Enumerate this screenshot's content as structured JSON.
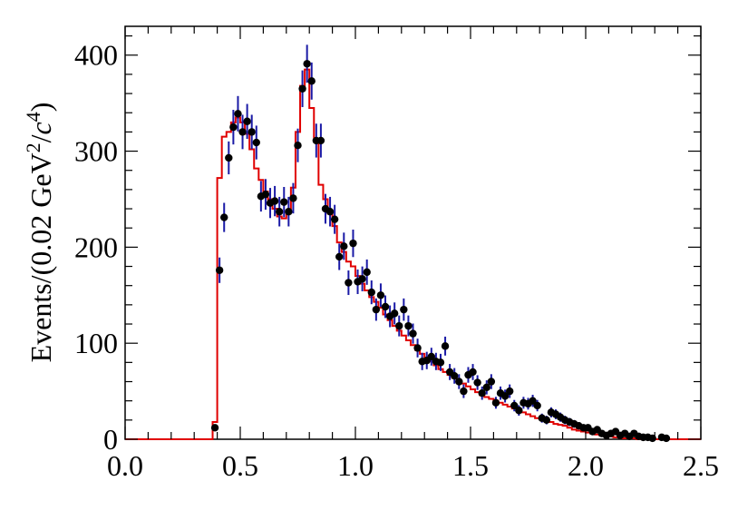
{
  "chart_data": {
    "type": "scatter",
    "title": "",
    "xlabel": "",
    "ylabel": "Events/(0.02 GeV",
    "ylabel_sup1": "2",
    "ylabel_mid": "/",
    "ylabel_c": "c",
    "ylabel_sup2": "4",
    "ylabel_end": ")",
    "xlim": [
      0.0,
      2.5
    ],
    "ylim": [
      0,
      430
    ],
    "x_ticks": [
      0.0,
      0.5,
      1.0,
      1.5,
      2.0,
      2.5
    ],
    "x_tick_labels": [
      "0.0",
      "0.5",
      "1.0",
      "1.5",
      "2.0",
      "2.5"
    ],
    "y_ticks": [
      0,
      100,
      200,
      300,
      400
    ],
    "y_tick_labels": [
      "0",
      "100",
      "200",
      "300",
      "400"
    ],
    "grid": false,
    "legend": "none",
    "colors": {
      "data": "#000000",
      "errorbar": "#1a1aa6",
      "fit": "#e00000",
      "axis": "#000000"
    },
    "series": [
      {
        "kind": "points",
        "x": [
          0.39,
          0.41,
          0.43,
          0.45,
          0.47,
          0.49,
          0.51,
          0.53,
          0.55,
          0.57,
          0.59,
          0.61,
          0.63,
          0.65,
          0.67,
          0.69,
          0.71,
          0.73,
          0.75,
          0.77,
          0.79,
          0.81,
          0.83,
          0.85,
          0.87,
          0.89,
          0.91,
          0.93,
          0.95,
          0.97,
          0.99,
          1.01,
          1.03,
          1.05,
          1.07,
          1.09,
          1.11,
          1.13,
          1.15,
          1.17,
          1.19,
          1.21,
          1.23,
          1.25,
          1.27,
          1.29,
          1.31,
          1.33,
          1.35,
          1.37,
          1.39,
          1.41,
          1.43,
          1.45,
          1.47,
          1.49,
          1.51,
          1.53,
          1.55,
          1.57,
          1.59,
          1.61,
          1.63,
          1.65,
          1.67,
          1.69,
          1.71,
          1.73,
          1.75,
          1.77,
          1.79,
          1.81,
          1.83,
          1.85,
          1.87,
          1.89,
          1.91,
          1.93,
          1.95,
          1.97,
          1.99,
          2.01,
          2.03,
          2.05,
          2.07,
          2.09,
          2.11,
          2.13,
          2.15,
          2.17,
          2.19,
          2.21,
          2.23,
          2.25,
          2.27,
          2.29,
          2.33,
          2.35
        ],
        "y": [
          12,
          176,
          231,
          293,
          325,
          339,
          320,
          331,
          320,
          309,
          253,
          255,
          246,
          248,
          237,
          247,
          237,
          251,
          306,
          365,
          391,
          373,
          311,
          311,
          240,
          237,
          229,
          190,
          201,
          163,
          204,
          164,
          167,
          174,
          153,
          135,
          150,
          138,
          128,
          131,
          118,
          135,
          118,
          110,
          95,
          81,
          82,
          86,
          81,
          80,
          97,
          70,
          66,
          60,
          50,
          67,
          70,
          59,
          48,
          54,
          60,
          38,
          48,
          45,
          50,
          35,
          30,
          38,
          37,
          40,
          35,
          22,
          20,
          28,
          26,
          23,
          20,
          18,
          16,
          14,
          12,
          12,
          8,
          10,
          6,
          4,
          6,
          8,
          4,
          6,
          3,
          6,
          3,
          2,
          2,
          1,
          2,
          1
        ]
      },
      {
        "kind": "fit_histogram",
        "bin_edges": [
          0.0,
          0.38,
          0.4,
          0.42,
          0.44,
          0.46,
          0.48,
          0.5,
          0.52,
          0.54,
          0.56,
          0.58,
          0.6,
          0.62,
          0.64,
          0.66,
          0.68,
          0.7,
          0.72,
          0.74,
          0.76,
          0.78,
          0.8,
          0.82,
          0.84,
          0.86,
          0.88,
          0.9,
          0.92,
          0.94,
          0.96,
          0.98,
          1.0,
          1.02,
          1.04,
          1.06,
          1.08,
          1.1,
          1.12,
          1.14,
          1.16,
          1.18,
          1.2,
          1.22,
          1.24,
          1.26,
          1.28,
          1.3,
          1.32,
          1.34,
          1.36,
          1.38,
          1.4,
          1.42,
          1.44,
          1.46,
          1.48,
          1.5,
          1.52,
          1.54,
          1.56,
          1.58,
          1.6,
          1.62,
          1.64,
          1.66,
          1.68,
          1.7,
          1.72,
          1.74,
          1.76,
          1.78,
          1.8,
          1.82,
          1.84,
          1.86,
          1.88,
          1.9,
          1.92,
          1.94,
          1.96,
          1.98,
          2.0,
          2.02,
          2.04,
          2.06,
          2.08,
          2.1,
          2.12,
          2.14,
          2.16,
          2.18,
          2.2,
          2.22,
          2.24,
          2.26,
          2.28,
          2.3,
          2.32,
          2.34,
          2.36,
          2.5
        ],
        "values": [
          0,
          18,
          272,
          315,
          320,
          330,
          335,
          330,
          318,
          302,
          282,
          270,
          258,
          250,
          240,
          232,
          230,
          238,
          262,
          320,
          368,
          385,
          345,
          310,
          265,
          250,
          235,
          222,
          205,
          195,
          185,
          180,
          170,
          162,
          155,
          148,
          143,
          137,
          130,
          124,
          118,
          113,
          108,
          103,
          98,
          93,
          89,
          85,
          81,
          77,
          73,
          70,
          67,
          64,
          61,
          58,
          55,
          52,
          49,
          46,
          44,
          42,
          40,
          38,
          36,
          34,
          32,
          30,
          28,
          26,
          24,
          22,
          21,
          20,
          18,
          16,
          15,
          14,
          12,
          10,
          9,
          8,
          7,
          6,
          5,
          4,
          3,
          3,
          2,
          2,
          1,
          1,
          1,
          0,
          0,
          0,
          0,
          0,
          0,
          0,
          0,
          0
        ]
      }
    ]
  }
}
